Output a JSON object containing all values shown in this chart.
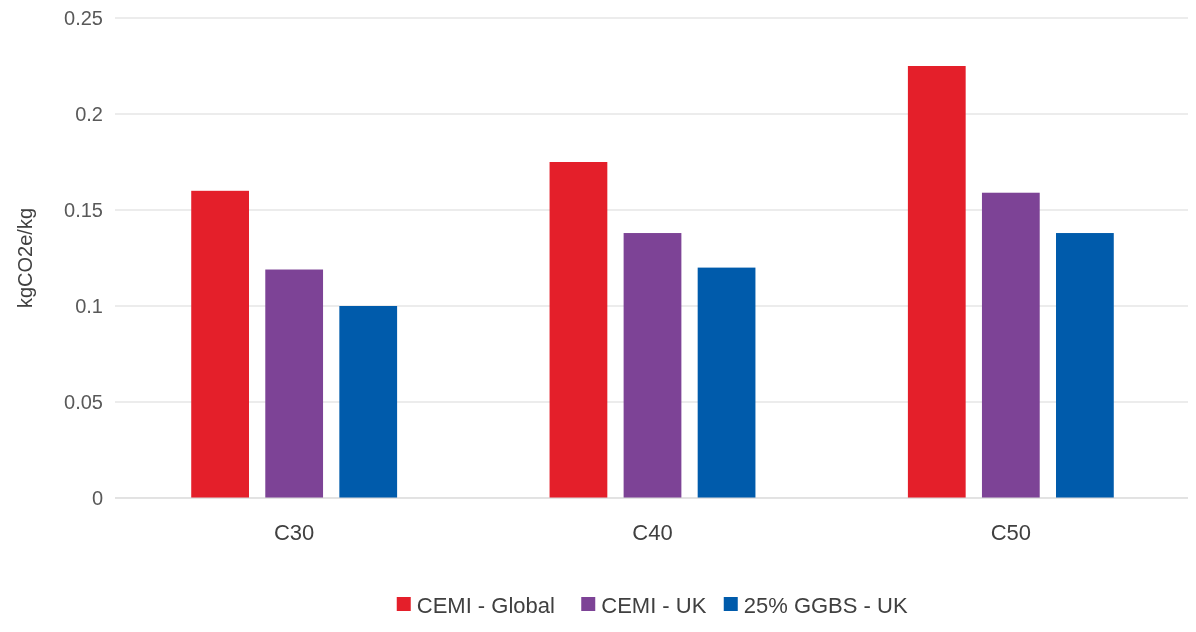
{
  "chart_data": {
    "type": "bar",
    "ylabel": "kgCO2e/kg",
    "categories": [
      "C30",
      "C40",
      "C50"
    ],
    "series": [
      {
        "name": "CEMI - Global",
        "color": "#e41f2a",
        "values": [
          0.16,
          0.175,
          0.225
        ]
      },
      {
        "name": "CEMI - UK",
        "color": "#7d4396",
        "values": [
          0.119,
          0.138,
          0.159
        ]
      },
      {
        "name": "25% GGBS - UK",
        "color": "#005bab",
        "values": [
          0.1,
          0.12,
          0.138
        ]
      }
    ],
    "ylim": [
      0,
      0.25
    ],
    "yticks": [
      0,
      0.05,
      0.1,
      0.15,
      0.2,
      0.25
    ],
    "grid": "y",
    "legend": "bottom"
  }
}
